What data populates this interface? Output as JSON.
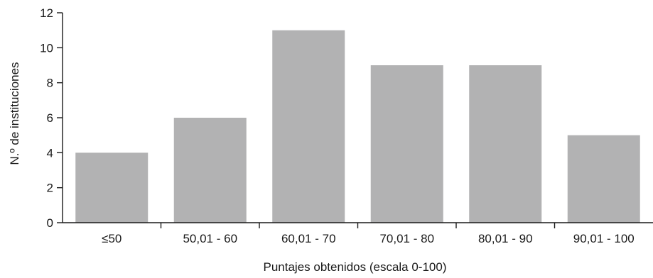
{
  "chart_data": {
    "type": "bar",
    "categories": [
      "≤50",
      "50,01 - 60",
      "60,01 - 70",
      "70,01 - 80",
      "80,01 - 90",
      "90,01 - 100"
    ],
    "values": [
      4,
      6,
      11,
      9,
      9,
      5
    ],
    "title": "",
    "xlabel": "Puntajes obtenidos (escala 0-100)",
    "ylabel": "N.º de instituciones",
    "ylim": [
      0,
      12
    ],
    "yticks": [
      "0",
      "2",
      "4",
      "6",
      "8",
      "10",
      "12"
    ],
    "bar_color": "#b2b2b3",
    "grid": false,
    "legend": "none"
  }
}
